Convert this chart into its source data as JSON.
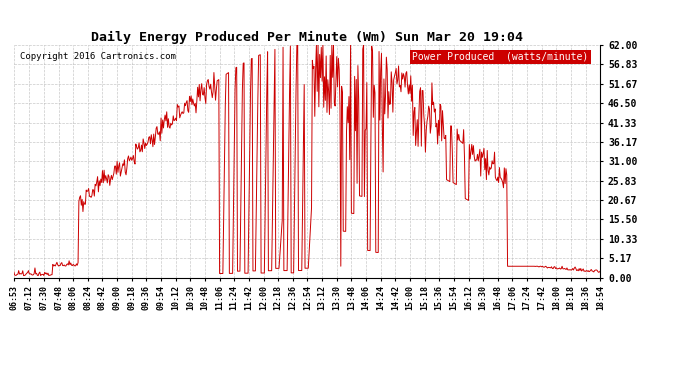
{
  "title": "Daily Energy Produced Per Minute (Wm) Sun Mar 20 19:04",
  "copyright": "Copyright 2016 Cartronics.com",
  "legend_label": "Power Produced  (watts/minute)",
  "legend_bg": "#cc0000",
  "legend_text_color": "#ffffff",
  "line_color": "#cc0000",
  "background_color": "#ffffff",
  "plot_bg": "#ffffff",
  "grid_color": "#bbbbbb",
  "yticks": [
    0.0,
    5.17,
    10.33,
    15.5,
    20.67,
    25.83,
    31.0,
    36.17,
    41.33,
    46.5,
    51.67,
    56.83,
    62.0
  ],
  "ymax": 62.0,
  "ymin": 0.0,
  "xtick_labels": [
    "06:53",
    "07:12",
    "07:30",
    "07:48",
    "08:06",
    "08:24",
    "08:42",
    "09:00",
    "09:18",
    "09:36",
    "09:54",
    "10:12",
    "10:30",
    "10:48",
    "11:06",
    "11:24",
    "11:42",
    "12:00",
    "12:18",
    "12:36",
    "12:54",
    "13:12",
    "13:30",
    "13:48",
    "14:06",
    "14:24",
    "14:42",
    "15:00",
    "15:18",
    "15:36",
    "15:54",
    "16:12",
    "16:30",
    "16:48",
    "17:06",
    "17:24",
    "17:42",
    "18:00",
    "18:18",
    "18:36",
    "18:54"
  ],
  "figsize": [
    6.9,
    3.75
  ],
  "dpi": 100
}
